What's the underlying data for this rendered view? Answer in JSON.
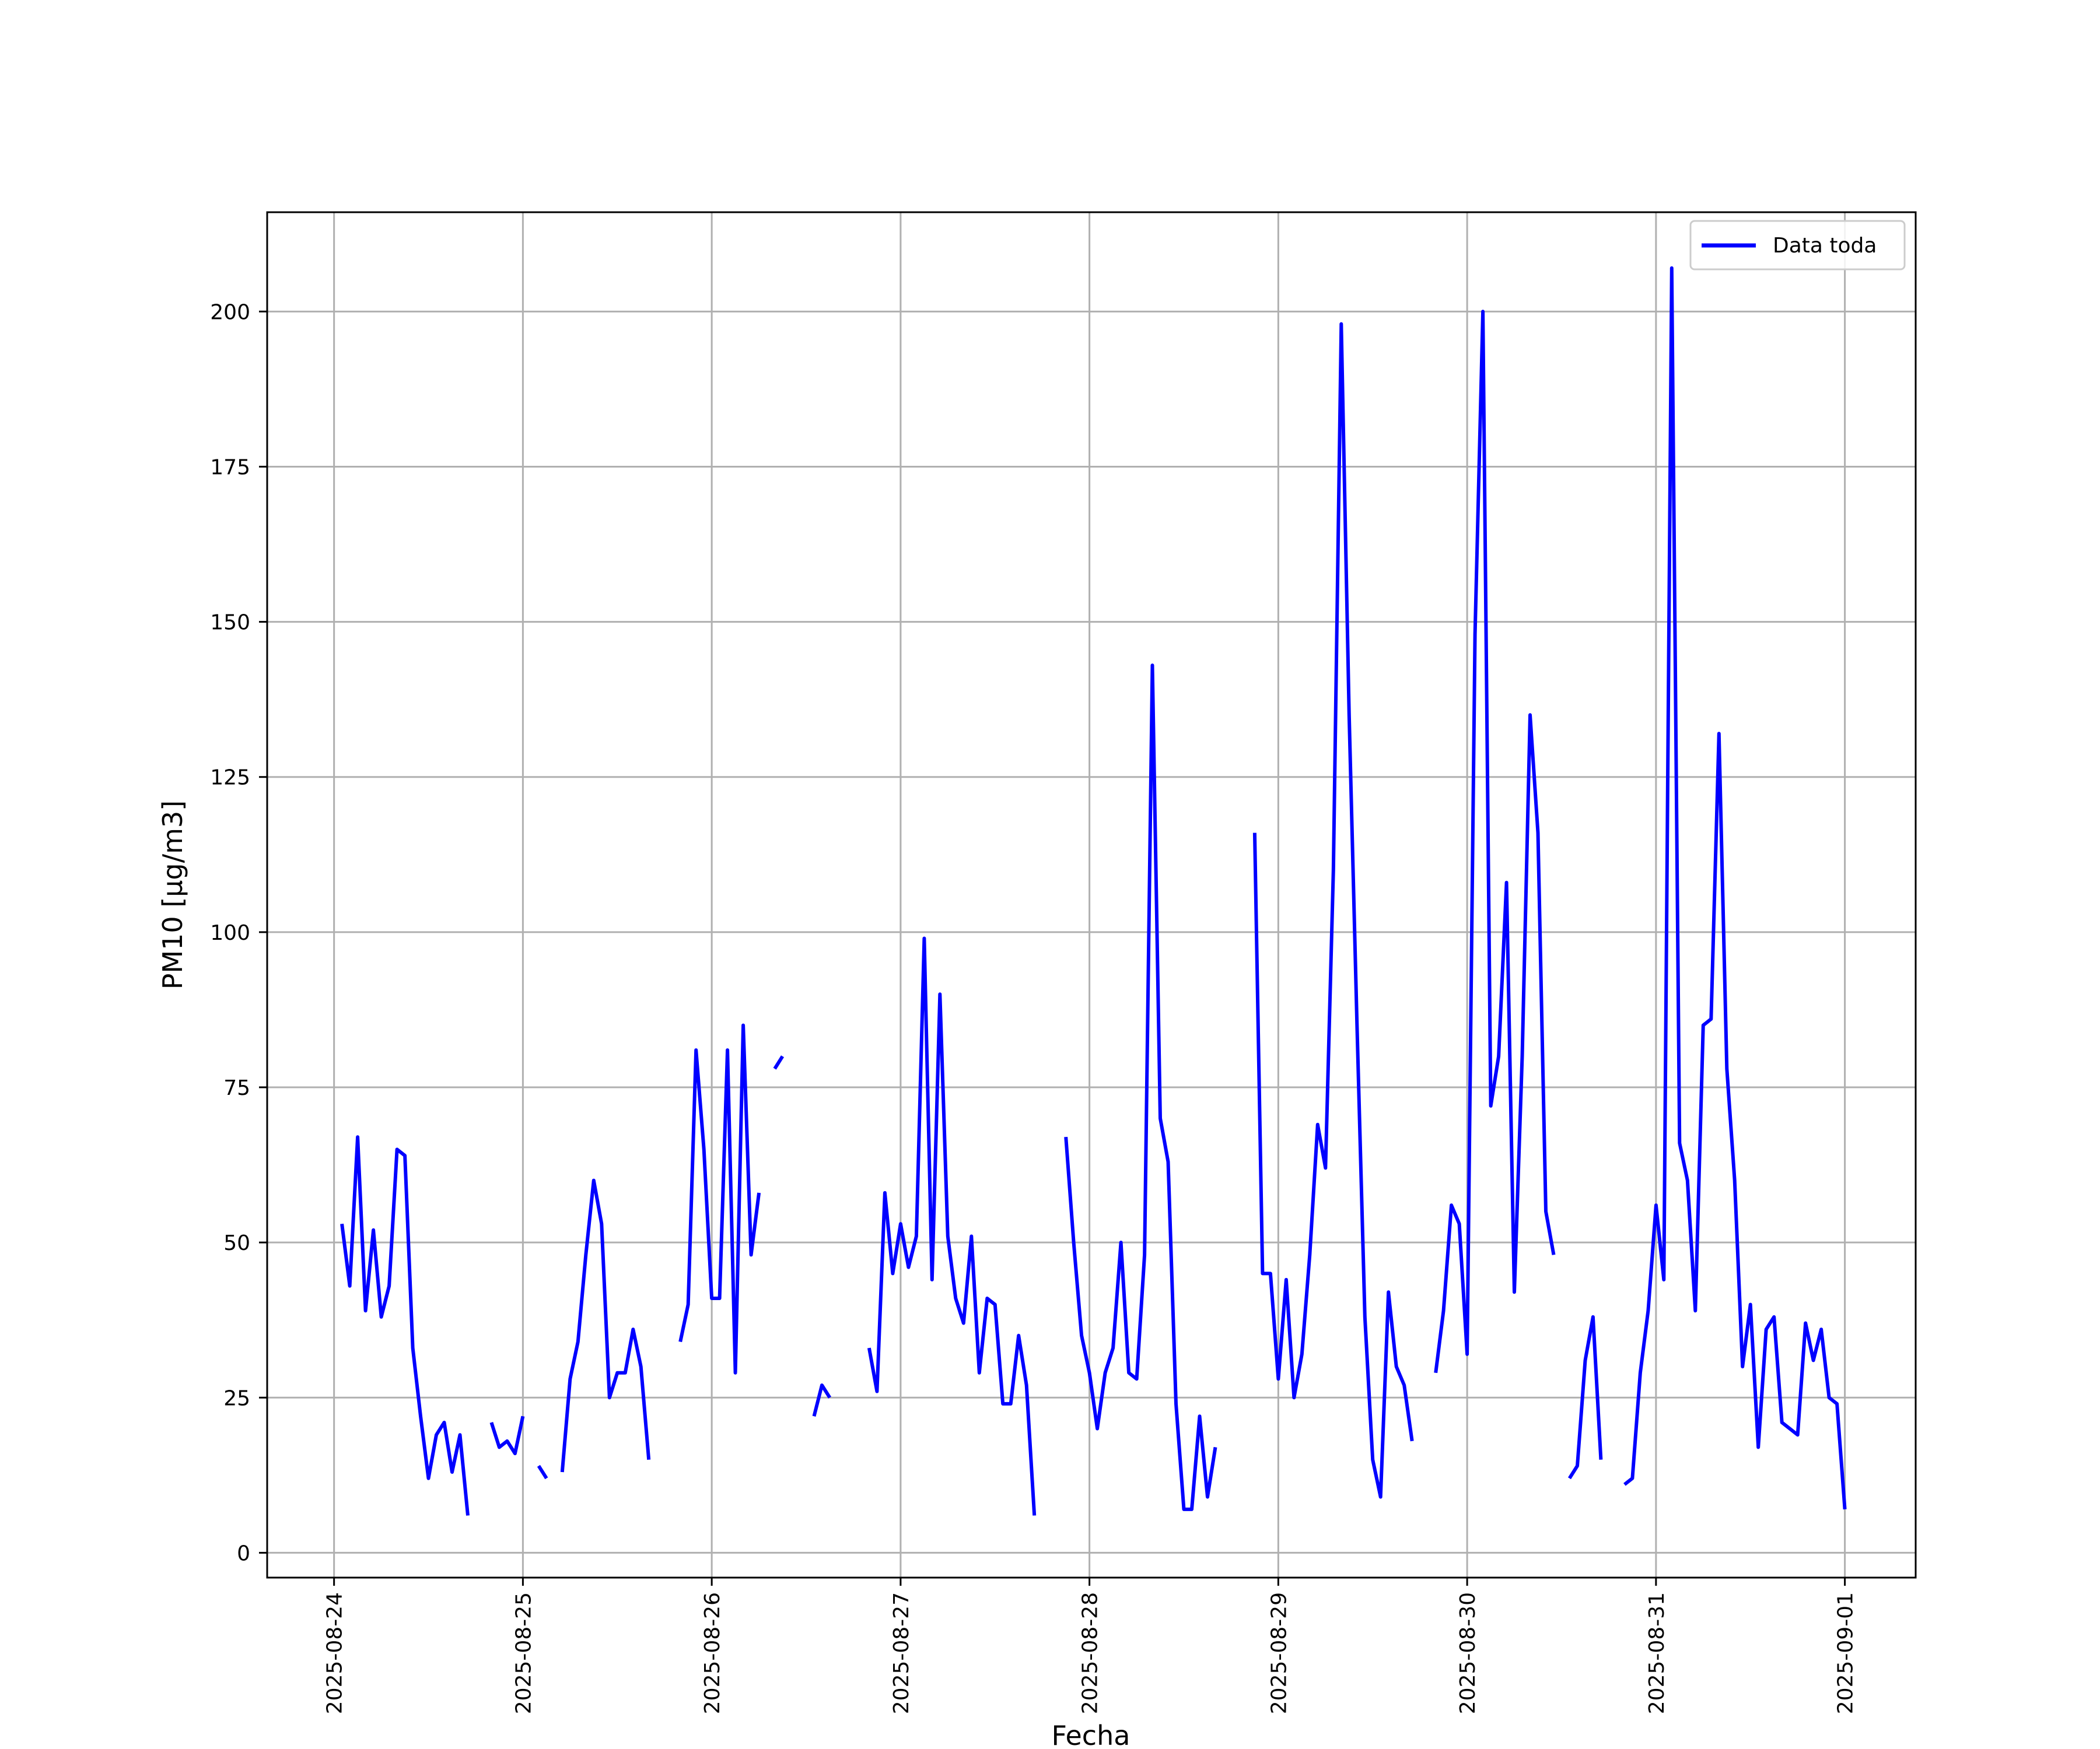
{
  "chart_data": {
    "type": "line",
    "title": "",
    "xlabel": "Fecha",
    "ylabel": "PM10 [μg/m3]",
    "xlim": [
      "2025-08-23T15:30",
      "2025-09-01T09:00"
    ],
    "ylim": [
      -4,
      216
    ],
    "grid": true,
    "legend_position": "top-right",
    "x_ticks": [
      "2025-08-24",
      "2025-08-25",
      "2025-08-26",
      "2025-08-27",
      "2025-08-28",
      "2025-08-29",
      "2025-08-30",
      "2025-08-31",
      "2025-09-01"
    ],
    "y_ticks": [
      0,
      25,
      50,
      75,
      100,
      125,
      150,
      175,
      200
    ],
    "series": [
      {
        "name": "Data toda",
        "color": "#0000ff",
        "segments": [
          {
            "x": [
              "2025-08-24T01:00",
              "2025-08-24T02:00",
              "2025-08-24T03:00",
              "2025-08-24T04:00",
              "2025-08-24T05:00",
              "2025-08-24T06:00",
              "2025-08-24T07:00",
              "2025-08-24T08:00",
              "2025-08-24T09:00",
              "2025-08-24T10:00",
              "2025-08-24T11:00",
              "2025-08-24T12:00",
              "2025-08-24T13:00",
              "2025-08-24T14:00",
              "2025-08-24T15:00",
              "2025-08-24T16:00",
              "2025-08-24T17:00"
            ],
            "y": [
              53,
              43,
              67,
              39,
              52,
              38,
              43,
              65,
              64,
              33,
              22,
              12,
              19,
              21,
              13,
              19,
              6
            ]
          },
          {
            "x": [
              "2025-08-24T20:00",
              "2025-08-24T21:00",
              "2025-08-24T22:00",
              "2025-08-24T23:00",
              "2025-08-25T00:00"
            ],
            "y": [
              21,
              17,
              18,
              16,
              22
            ]
          },
          {
            "x": [
              "2025-08-25T02:00",
              "2025-08-25T03:00"
            ],
            "y": [
              14,
              12
            ]
          },
          {
            "x": [
              "2025-08-25T05:00",
              "2025-08-25T06:00",
              "2025-08-25T07:00",
              "2025-08-25T08:00",
              "2025-08-25T09:00",
              "2025-08-25T10:00",
              "2025-08-25T11:00",
              "2025-08-25T12:00",
              "2025-08-25T13:00",
              "2025-08-25T14:00",
              "2025-08-25T15:00",
              "2025-08-25T16:00"
            ],
            "y": [
              13,
              28,
              34,
              48,
              60,
              53,
              25,
              29,
              29,
              36,
              30,
              15
            ]
          },
          {
            "x": [
              "2025-08-25T20:00",
              "2025-08-25T21:00",
              "2025-08-25T22:00",
              "2025-08-25T23:00",
              "2025-08-26T00:00",
              "2025-08-26T01:00",
              "2025-08-26T02:00",
              "2025-08-26T03:00",
              "2025-08-26T04:00",
              "2025-08-26T05:00",
              "2025-08-26T06:00"
            ],
            "y": [
              34,
              40,
              81,
              65,
              41,
              41,
              81,
              29,
              85,
              48,
              58
            ]
          },
          {
            "x": [
              "2025-08-26T08:00",
              "2025-08-26T09:00"
            ],
            "y": [
              78,
              80
            ]
          },
          {
            "x": [
              "2025-08-26T13:00",
              "2025-08-26T14:00",
              "2025-08-26T15:00"
            ],
            "y": [
              22,
              27,
              25
            ]
          },
          {
            "x": [
              "2025-08-26T20:00",
              "2025-08-26T21:00",
              "2025-08-26T22:00",
              "2025-08-26T23:00",
              "2025-08-27T00:00",
              "2025-08-27T01:00",
              "2025-08-27T02:00",
              "2025-08-27T03:00",
              "2025-08-27T04:00",
              "2025-08-27T05:00",
              "2025-08-27T06:00",
              "2025-08-27T07:00",
              "2025-08-27T08:00",
              "2025-08-27T09:00",
              "2025-08-27T10:00",
              "2025-08-27T11:00",
              "2025-08-27T12:00",
              "2025-08-27T13:00",
              "2025-08-27T14:00",
              "2025-08-27T15:00",
              "2025-08-27T16:00",
              "2025-08-27T17:00"
            ],
            "y": [
              33,
              26,
              58,
              45,
              53,
              46,
              51,
              99,
              44,
              90,
              51,
              41,
              37,
              51,
              29,
              41,
              40,
              24,
              24,
              35,
              27,
              6
            ]
          },
          {
            "x": [
              "2025-08-27T21:00",
              "2025-08-27T22:00",
              "2025-08-27T23:00",
              "2025-08-28T00:00",
              "2025-08-28T01:00",
              "2025-08-28T02:00",
              "2025-08-28T03:00",
              "2025-08-28T04:00",
              "2025-08-28T05:00",
              "2025-08-28T06:00",
              "2025-08-28T07:00",
              "2025-08-28T08:00",
              "2025-08-28T09:00",
              "2025-08-28T10:00",
              "2025-08-28T11:00",
              "2025-08-28T12:00",
              "2025-08-28T13:00",
              "2025-08-28T14:00",
              "2025-08-28T15:00",
              "2025-08-28T16:00"
            ],
            "y": [
              67,
              50,
              35,
              29,
              20,
              29,
              33,
              50,
              29,
              28,
              48,
              143,
              70,
              63,
              24,
              7,
              7,
              22,
              9,
              17
            ]
          },
          {
            "x": [
              "2025-08-28T21:00",
              "2025-08-28T22:00",
              "2025-08-28T23:00",
              "2025-08-29T00:00",
              "2025-08-29T01:00",
              "2025-08-29T02:00",
              "2025-08-29T03:00",
              "2025-08-29T04:00",
              "2025-08-29T05:00",
              "2025-08-29T06:00",
              "2025-08-29T07:00",
              "2025-08-29T08:00",
              "2025-08-29T09:00",
              "2025-08-29T10:00",
              "2025-08-29T11:00",
              "2025-08-29T12:00",
              "2025-08-29T13:00",
              "2025-08-29T14:00",
              "2025-08-29T15:00",
              "2025-08-29T16:00",
              "2025-08-29T17:00"
            ],
            "y": [
              116,
              45,
              45,
              28,
              44,
              25,
              32,
              48,
              69,
              62,
              110,
              198,
              135,
              85,
              38,
              15,
              9,
              42,
              30,
              27,
              18
            ]
          },
          {
            "x": [
              "2025-08-29T20:00",
              "2025-08-29T21:00",
              "2025-08-29T22:00",
              "2025-08-29T23:00",
              "2025-08-30T00:00",
              "2025-08-30T01:00",
              "2025-08-30T02:00",
              "2025-08-30T03:00",
              "2025-08-30T04:00",
              "2025-08-30T05:00",
              "2025-08-30T06:00",
              "2025-08-30T07:00",
              "2025-08-30T08:00",
              "2025-08-30T09:00",
              "2025-08-30T10:00",
              "2025-08-30T11:00"
            ],
            "y": [
              29,
              39,
              56,
              53,
              32,
              148,
              200,
              72,
              80,
              108,
              42,
              80,
              135,
              116,
              55,
              48
            ]
          },
          {
            "x": [
              "2025-08-30T13:00",
              "2025-08-30T14:00",
              "2025-08-30T15:00",
              "2025-08-30T16:00",
              "2025-08-30T17:00"
            ],
            "y": [
              12,
              14,
              31,
              38,
              15
            ]
          },
          {
            "x": [
              "2025-08-30T20:00",
              "2025-08-30T21:00",
              "2025-08-30T22:00",
              "2025-08-30T23:00",
              "2025-08-31T00:00",
              "2025-08-31T01:00",
              "2025-08-31T02:00",
              "2025-08-31T03:00",
              "2025-08-31T04:00",
              "2025-08-31T05:00",
              "2025-08-31T06:00",
              "2025-08-31T07:00",
              "2025-08-31T08:00",
              "2025-08-31T09:00",
              "2025-08-31T10:00",
              "2025-08-31T11:00",
              "2025-08-31T12:00",
              "2025-08-31T13:00",
              "2025-08-31T14:00",
              "2025-08-31T15:00",
              "2025-08-31T16:00",
              "2025-08-31T17:00",
              "2025-08-31T18:00",
              "2025-08-31T19:00",
              "2025-08-31T20:00",
              "2025-08-31T21:00",
              "2025-08-31T22:00",
              "2025-08-31T23:00",
              "2025-09-01T00:00"
            ],
            "y": [
              11,
              12,
              29,
              39,
              56,
              44,
              207,
              66,
              60,
              39,
              85,
              86,
              132,
              78,
              60,
              30,
              40,
              17,
              36,
              38,
              21,
              20,
              19,
              37,
              31,
              36,
              25,
              24,
              7
            ]
          }
        ]
      }
    ]
  }
}
